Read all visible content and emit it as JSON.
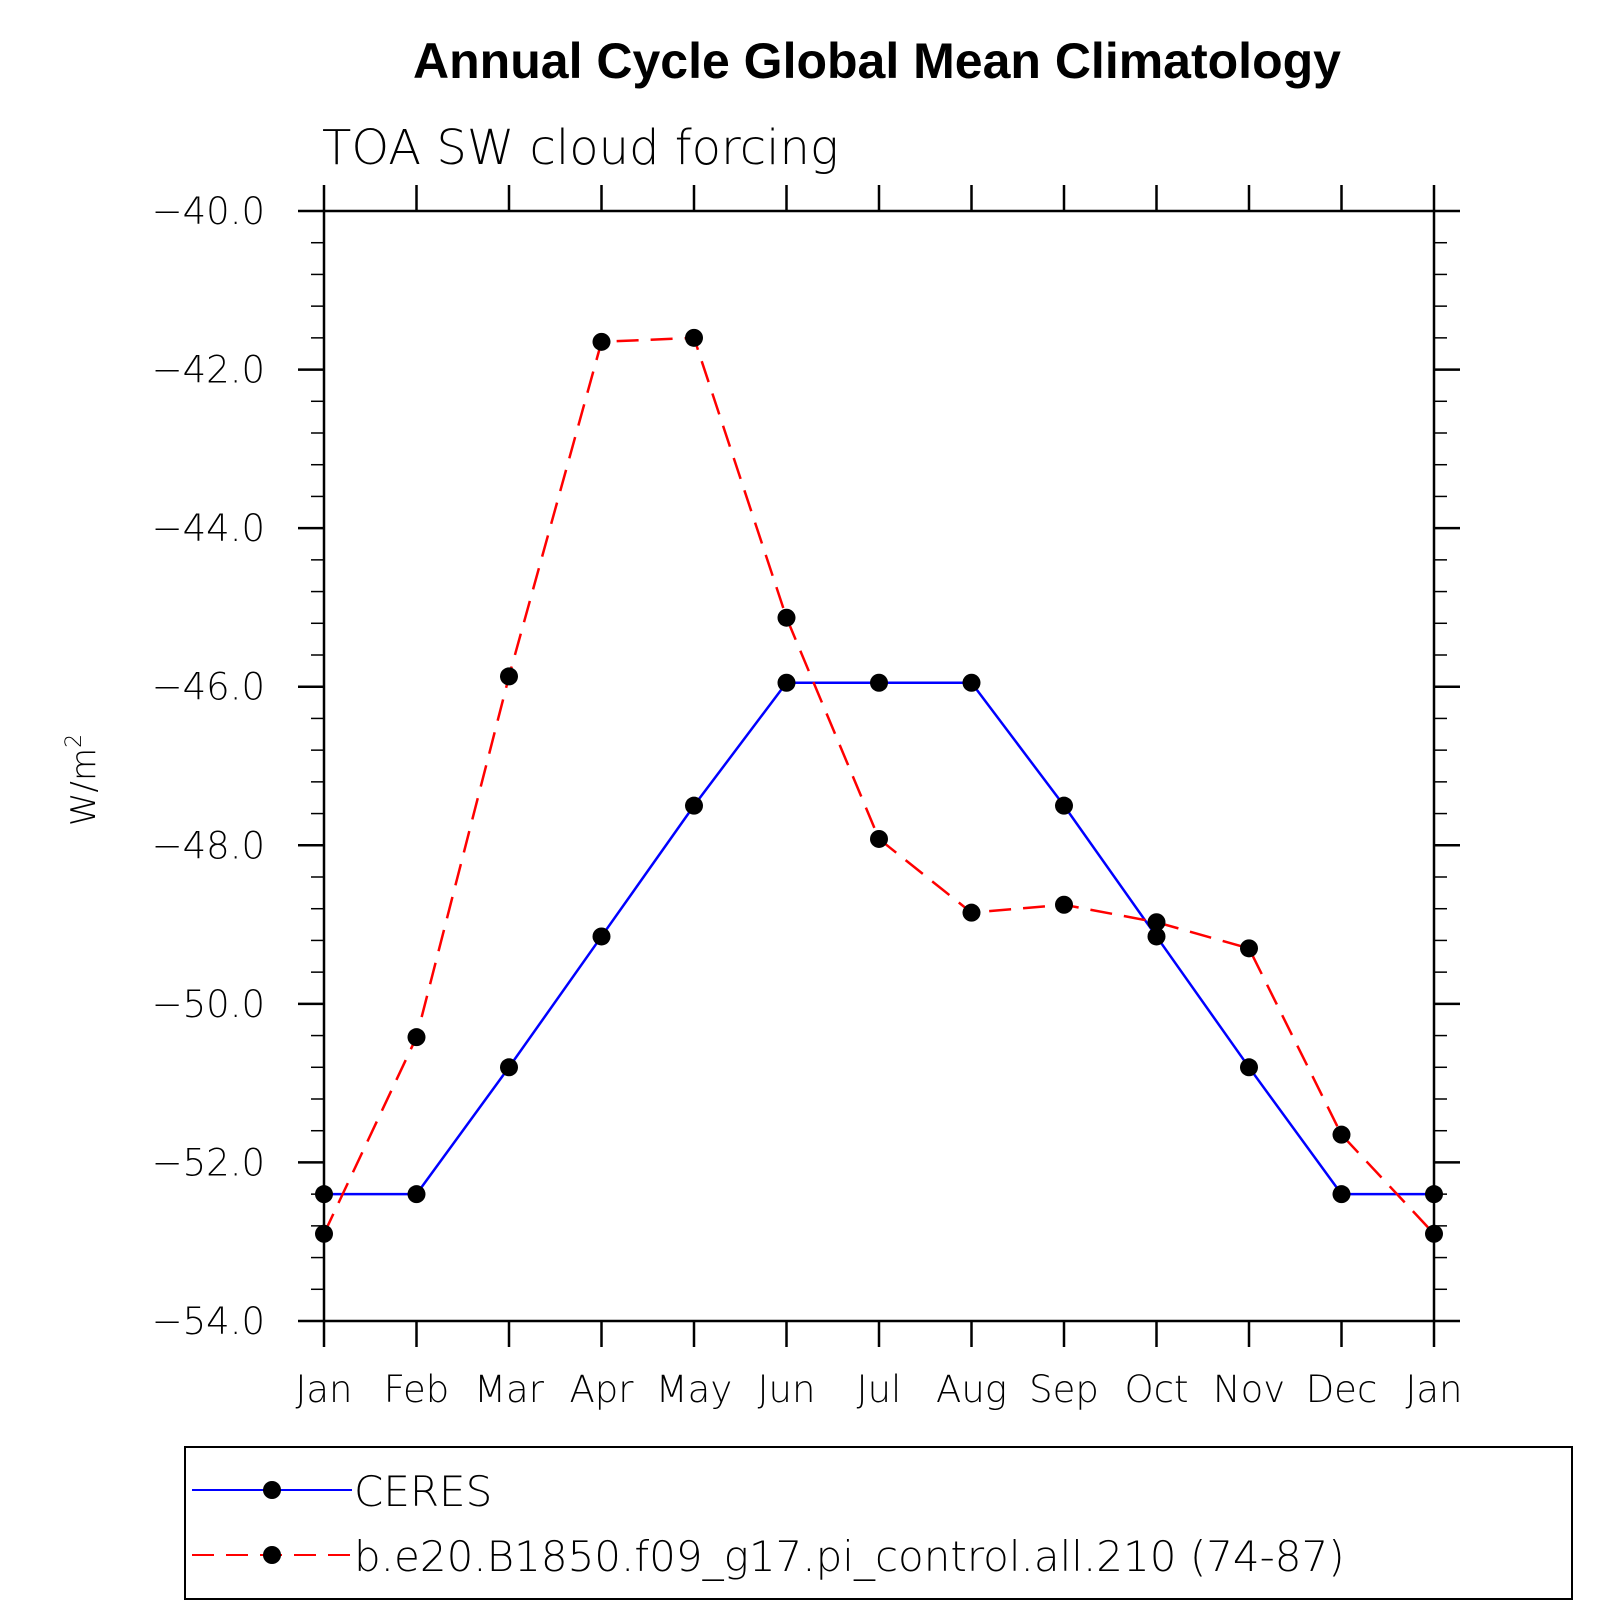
{
  "chart_data": {
    "type": "line",
    "title": "Annual Cycle Global Mean Climatology",
    "subtitle": "TOA SW cloud forcing",
    "ylabel": "W/m",
    "ylabel_superscript": "2",
    "xlabel": "",
    "categories": [
      "Jan",
      "Feb",
      "Mar",
      "Apr",
      "May",
      "Jun",
      "Jul",
      "Aug",
      "Sep",
      "Oct",
      "Nov",
      "Dec",
      "Jan"
    ],
    "ylim": [
      -54.0,
      -40.0
    ],
    "yticks": [
      "-40.0",
      "-42.0",
      "-44.0",
      "-46.0",
      "-48.0",
      "-50.0",
      "-52.0",
      "-54.0"
    ],
    "grid": false,
    "legend_position": "bottom",
    "series": [
      {
        "name": "CERES",
        "color": "#0000ff",
        "style": "solid",
        "marker": "filled-circle",
        "values": [
          -52.4,
          -52.4,
          -50.8,
          -49.15,
          -47.5,
          -45.95,
          -45.95,
          -45.95,
          -47.5,
          -49.15,
          -50.8,
          -52.4,
          -52.4
        ]
      },
      {
        "name": "b.e20.B1850.f09_g17.pi_control.all.210 (74-87)",
        "color": "#ff0000",
        "style": "dashed",
        "marker": "filled-circle",
        "values": [
          -52.9,
          -50.42,
          -45.87,
          -41.65,
          -41.6,
          -45.13,
          -47.92,
          -48.85,
          -48.75,
          -48.97,
          -49.3,
          -51.65,
          -52.9
        ]
      }
    ]
  }
}
